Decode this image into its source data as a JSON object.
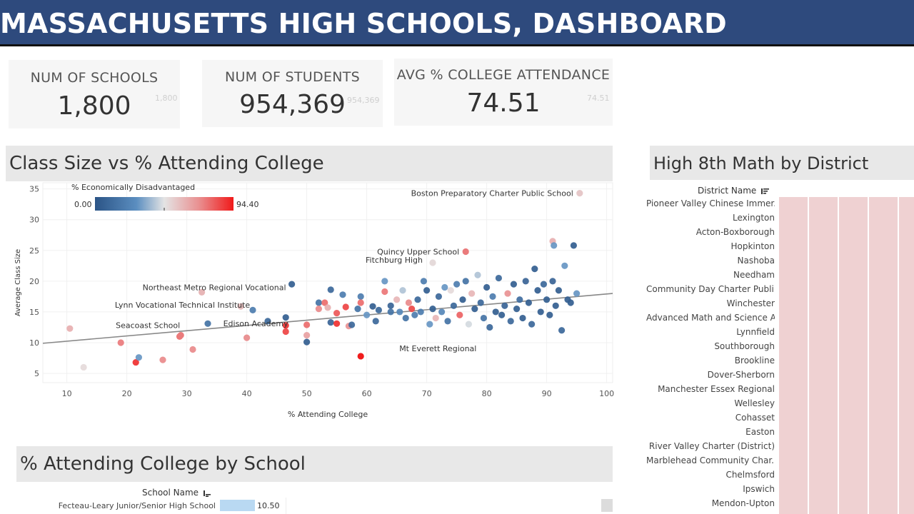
{
  "header": {
    "title": "MASSACHUSETTS HIGH SCHOOLS, DASHBOARD"
  },
  "kpis": [
    {
      "label": "NUM OF SCHOOLS",
      "value": "1,800",
      "ghost": "1,800"
    },
    {
      "label": "NUM OF STUDENTS",
      "value": "954,369",
      "ghost": "954,369"
    },
    {
      "label": "AVG % COLLEGE ATTENDANCE",
      "value": "74.51",
      "ghost": "74.51"
    }
  ],
  "scatter": {
    "title": "Class Size vs % Attending College",
    "legend": {
      "title": "% Economically Disadvantaged",
      "min": "0.00",
      "max": "94.40"
    },
    "chart_data": {
      "type": "scatter",
      "title": "Class Size vs % Attending College",
      "xlabel": "% Attending College",
      "ylabel": "Average Class Size",
      "xlim": [
        6,
        101
      ],
      "ylim": [
        3.5,
        36
      ],
      "xticks": [
        10,
        20,
        30,
        40,
        50,
        60,
        70,
        80,
        90,
        100
      ],
      "yticks": [
        5,
        10,
        15,
        20,
        25,
        30,
        35
      ],
      "grid": true,
      "color_by": "% Economically Disadvantaged",
      "color_range": [
        0.0,
        94.4
      ],
      "trend_line": {
        "x": [
          6,
          101
        ],
        "y": [
          9.9,
          18.0
        ]
      },
      "labeled_points": [
        {
          "name": "Boston Preparatory Charter Public School",
          "x": 95.5,
          "y": 34.3,
          "econ": 55
        },
        {
          "name": "Quincy Upper School",
          "x": 76.5,
          "y": 24.8,
          "econ": 75
        },
        {
          "name": "Fitchburg High",
          "x": 71.0,
          "y": 23.0,
          "econ": 50
        },
        {
          "name": "Northeast Metro Regional Vocational",
          "x": 32.5,
          "y": 18.2,
          "econ": 60
        },
        {
          "name": "Lynn Vocational Technical Institute",
          "x": 39.0,
          "y": 15.9,
          "econ": 58
        },
        {
          "name": "Seacoast School",
          "x": 29.0,
          "y": 11.2,
          "econ": 75
        },
        {
          "name": "Edison Academy",
          "x": 40.0,
          "y": 10.8,
          "econ": 70
        },
        {
          "name": "Mt Everett Regional",
          "x": 59.0,
          "y": 7.8,
          "econ": 94
        }
      ],
      "points": [
        [
          10.5,
          12.3,
          62
        ],
        [
          12.8,
          6.0,
          50
        ],
        [
          19.0,
          10.0,
          75
        ],
        [
          21.5,
          6.8,
          90
        ],
        [
          22.0,
          7.6,
          30
        ],
        [
          26.0,
          7.2,
          72
        ],
        [
          28.8,
          11.0,
          78
        ],
        [
          31.0,
          8.9,
          72
        ],
        [
          33.5,
          13.1,
          15
        ],
        [
          41.0,
          15.3,
          20
        ],
        [
          43.5,
          13.5,
          10
        ],
        [
          46.5,
          14.1,
          5
        ],
        [
          46.5,
          12.8,
          90
        ],
        [
          46.5,
          11.8,
          86
        ],
        [
          47.5,
          19.5,
          5
        ],
        [
          50.0,
          10.1,
          5
        ],
        [
          50.0,
          11.2,
          66
        ],
        [
          50.0,
          12.9,
          78
        ],
        [
          52.0,
          16.5,
          15
        ],
        [
          52.0,
          15.5,
          72
        ],
        [
          53.0,
          16.5,
          78
        ],
        [
          53.5,
          15.7,
          62
        ],
        [
          54.0,
          13.3,
          8
        ],
        [
          54.0,
          18.6,
          10
        ],
        [
          55.0,
          14.8,
          82
        ],
        [
          55.0,
          13.1,
          90
        ],
        [
          56.0,
          17.8,
          20
        ],
        [
          56.5,
          15.8,
          86
        ],
        [
          57.0,
          12.7,
          70
        ],
        [
          57.5,
          12.9,
          10
        ],
        [
          58.5,
          15.5,
          15
        ],
        [
          59.0,
          17.5,
          20
        ],
        [
          59.0,
          16.5,
          78
        ],
        [
          60.0,
          14.5,
          30
        ],
        [
          61.0,
          15.9,
          5
        ],
        [
          61.5,
          13.5,
          10
        ],
        [
          62.0,
          15.3,
          10
        ],
        [
          63.0,
          18.3,
          76
        ],
        [
          63.0,
          20.0,
          30
        ],
        [
          64.0,
          15.0,
          15
        ],
        [
          64.0,
          16.0,
          8
        ],
        [
          65.0,
          17.0,
          60
        ],
        [
          65.5,
          15.0,
          25
        ],
        [
          66.0,
          18.5,
          40
        ],
        [
          66.5,
          14.0,
          15
        ],
        [
          67.0,
          16.5,
          72
        ],
        [
          67.5,
          15.5,
          85
        ],
        [
          68.0,
          14.5,
          20
        ],
        [
          68.5,
          17.0,
          10
        ],
        [
          69.0,
          15.0,
          20
        ],
        [
          69.5,
          20.0,
          20
        ],
        [
          70.0,
          18.5,
          5
        ],
        [
          70.5,
          13.0,
          30
        ],
        [
          71.0,
          15.5,
          5
        ],
        [
          71.5,
          14.0,
          60
        ],
        [
          72.0,
          17.5,
          10
        ],
        [
          72.5,
          15.0,
          25
        ],
        [
          73.0,
          19.0,
          30
        ],
        [
          73.5,
          13.5,
          15
        ],
        [
          74.0,
          18.5,
          50
        ],
        [
          74.5,
          16.0,
          10
        ],
        [
          75.0,
          19.5,
          20
        ],
        [
          75.5,
          14.5,
          80
        ],
        [
          76.0,
          17.0,
          5
        ],
        [
          76.5,
          20.0,
          15
        ],
        [
          77.0,
          13.0,
          45
        ],
        [
          77.5,
          18.0,
          60
        ],
        [
          78.0,
          15.5,
          5
        ],
        [
          78.5,
          21.0,
          40
        ],
        [
          79.0,
          16.5,
          10
        ],
        [
          79.5,
          14.0,
          15
        ],
        [
          80.0,
          19.0,
          5
        ],
        [
          80.5,
          12.5,
          10
        ],
        [
          81.0,
          17.5,
          20
        ],
        [
          81.5,
          15.0,
          5
        ],
        [
          82.0,
          20.5,
          10
        ],
        [
          82.5,
          14.5,
          5
        ],
        [
          83.0,
          16.0,
          8
        ],
        [
          83.5,
          18.0,
          70
        ],
        [
          84.0,
          13.5,
          10
        ],
        [
          84.5,
          19.5,
          5
        ],
        [
          85.0,
          15.5,
          5
        ],
        [
          85.5,
          17.0,
          12
        ],
        [
          86.0,
          14.0,
          5
        ],
        [
          86.5,
          20.0,
          8
        ],
        [
          87.0,
          16.5,
          5
        ],
        [
          87.5,
          13.0,
          10
        ],
        [
          88.0,
          22.0,
          5
        ],
        [
          88.5,
          18.5,
          5
        ],
        [
          89.0,
          15.0,
          5
        ],
        [
          89.5,
          19.5,
          10
        ],
        [
          90.0,
          17.0,
          5
        ],
        [
          90.5,
          14.5,
          5
        ],
        [
          91.0,
          20.0,
          8
        ],
        [
          91.0,
          26.5,
          62
        ],
        [
          91.2,
          25.8,
          30
        ],
        [
          91.5,
          16.0,
          5
        ],
        [
          92.0,
          18.5,
          5
        ],
        [
          92.5,
          12.0,
          10
        ],
        [
          93.0,
          22.5,
          30
        ],
        [
          93.5,
          17.0,
          5
        ],
        [
          94.0,
          16.5,
          5
        ],
        [
          94.5,
          25.8,
          5
        ],
        [
          95.0,
          18.0,
          30
        ]
      ]
    }
  },
  "college_by_school": {
    "title": "% Attending College by School",
    "column_header": "School Name",
    "rows": [
      {
        "name": "Fecteau-Leary Junior/Senior High School",
        "value": 10.5,
        "label": "10.50"
      }
    ]
  },
  "math_by_district": {
    "title": "High 8th Math by District",
    "column_header": "District Name",
    "districts": [
      "Pioneer Valley Chinese Immer..",
      "Lexington",
      "Acton-Boxborough",
      "Hopkinton",
      "Nashoba",
      "Needham",
      "Community Day Charter Publi..",
      "Winchester",
      "Advanced Math and Science A..",
      "Lynnfield",
      "Southborough",
      "Brookline",
      "Dover-Sherborn",
      "Manchester Essex Regional",
      "Wellesley",
      "Cohasset",
      "Easton",
      "River Valley Charter (District)",
      "Marblehead Community Char..",
      "Chelmsford",
      "Ipswich",
      "Mendon-Upton"
    ]
  },
  "colors": {
    "header_bg": "#2e4a7d",
    "low": "#2b5486",
    "mid": "#e4e4e4",
    "high": "#f01a1a",
    "heat": "#efd1d2"
  }
}
